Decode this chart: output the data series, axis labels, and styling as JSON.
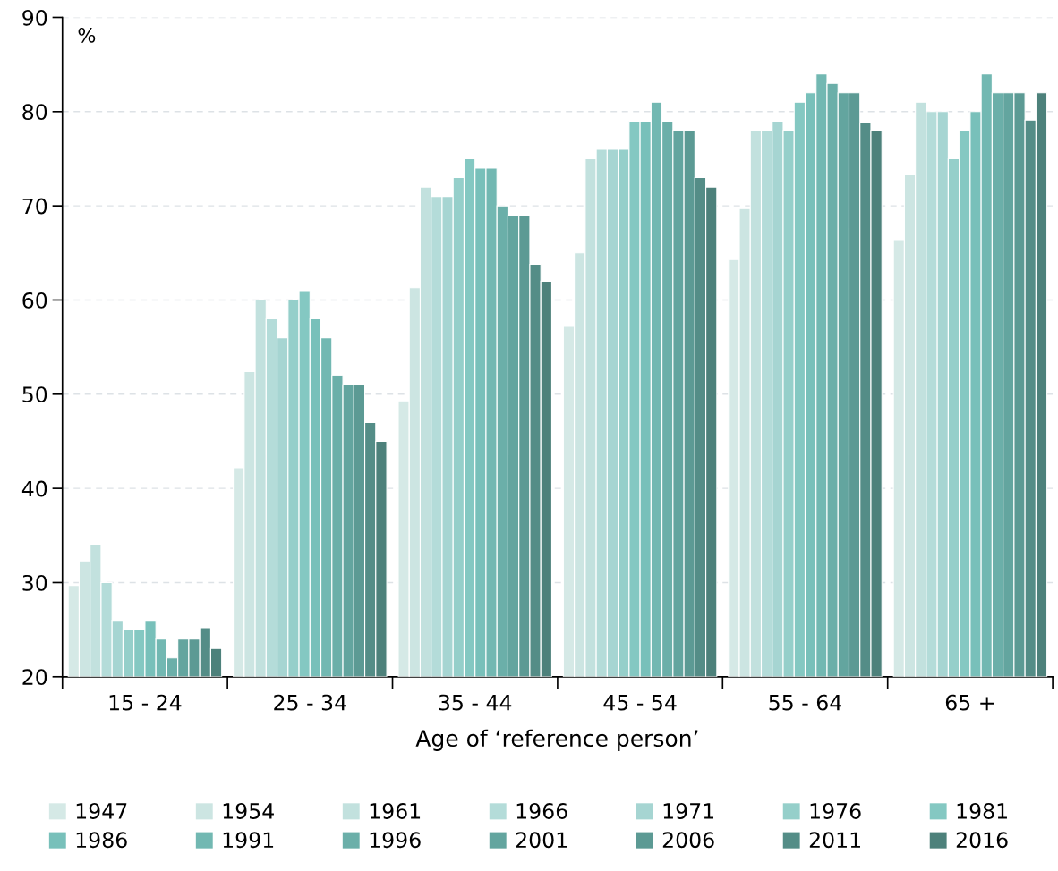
{
  "chart_data": {
    "type": "bar",
    "xlabel": "Age of ‘reference person’",
    "categories": [
      "15 - 24",
      "25 - 34",
      "35 - 44",
      "45 - 54",
      "55 - 64",
      "65 +"
    ],
    "series": [
      {
        "name": "1947",
        "color": "#d5e9e6",
        "values": [
          29.7,
          42.2,
          49.3,
          57.2,
          64.3,
          66.4
        ]
      },
      {
        "name": "1954",
        "color": "#cce5e2",
        "values": [
          32.3,
          52.4,
          61.3,
          65,
          69.7,
          73.3
        ]
      },
      {
        "name": "1961",
        "color": "#c2e1de",
        "values": [
          34,
          60,
          72,
          75,
          78,
          81
        ]
      },
      {
        "name": "1966",
        "color": "#b4dcd9",
        "values": [
          30,
          58,
          71,
          76,
          78,
          80
        ]
      },
      {
        "name": "1971",
        "color": "#a6d5d2",
        "values": [
          26,
          56,
          71,
          76,
          79,
          80
        ]
      },
      {
        "name": "1976",
        "color": "#95cfca",
        "values": [
          25,
          60,
          73,
          76,
          78,
          75
        ]
      },
      {
        "name": "1981",
        "color": "#84c8c2",
        "values": [
          25,
          61,
          75,
          79,
          81,
          78
        ]
      },
      {
        "name": "1986",
        "color": "#78c0ba",
        "values": [
          26,
          58,
          74,
          79,
          82,
          80
        ]
      },
      {
        "name": "1991",
        "color": "#72b8b2",
        "values": [
          24,
          56,
          74,
          81,
          84,
          84
        ]
      },
      {
        "name": "1996",
        "color": "#6bafa9",
        "values": [
          22,
          52,
          70,
          79,
          83,
          82
        ]
      },
      {
        "name": "2001",
        "color": "#63a59f",
        "values": [
          24,
          51,
          69,
          78,
          82,
          82
        ]
      },
      {
        "name": "2006",
        "color": "#5c9a94",
        "values": [
          24,
          51,
          69,
          78,
          82,
          82
        ]
      },
      {
        "name": "2011",
        "color": "#548d87",
        "values": [
          25.2,
          47,
          63.8,
          73,
          78.8,
          79.1
        ]
      },
      {
        "name": "2016",
        "color": "#4d817b",
        "values": [
          23,
          45,
          62,
          72,
          78,
          82
        ]
      }
    ],
    "ylim": [
      20,
      90
    ],
    "yticks": [
      20,
      30,
      40,
      50,
      60,
      70,
      80,
      90
    ],
    "grid": "y",
    "legend": "bottom",
    "annotations": [
      "%"
    ]
  }
}
